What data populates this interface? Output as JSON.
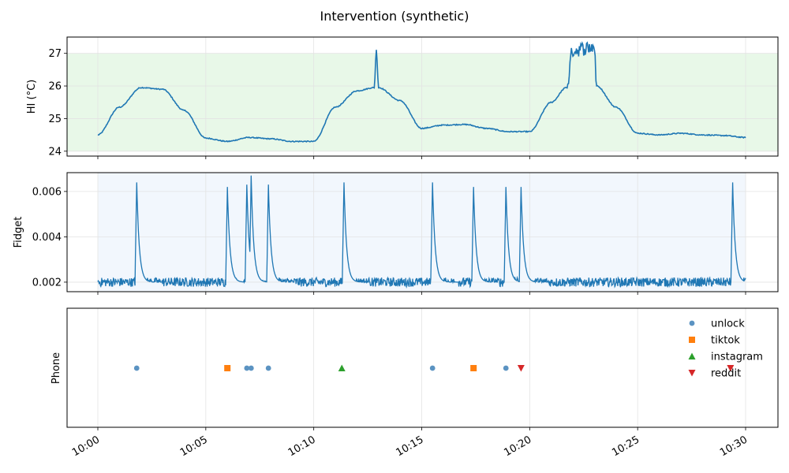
{
  "chart_data": [
    {
      "type": "line",
      "title": "Intervention (synthetic)",
      "ylabel": "HI (°C)",
      "ylim": [
        23.85,
        27.5
      ],
      "yticks": [
        24,
        25,
        26,
        27
      ],
      "comfort_band": [
        24,
        27
      ],
      "band_color": "#e8f8e8",
      "series": [
        {
          "color": "#1f77b4",
          "x": [
            "10:00",
            "10:01",
            "10:02",
            "10:03",
            "10:04",
            "10:05",
            "10:06",
            "10:07",
            "10:08",
            "10:09",
            "10:10",
            "10:11",
            "10:12",
            "10:12.8",
            "10:12.9",
            "10:13",
            "10:14",
            "10:15",
            "10:16",
            "10:17",
            "10:18",
            "10:19",
            "10:20",
            "10:21",
            "10:21.7",
            "10:22",
            "10:23",
            "10:23.1",
            "10:24",
            "10:25",
            "10:26",
            "10:27",
            "10:28",
            "10:29",
            "10:30"
          ],
          "values": [
            24.5,
            25.35,
            25.95,
            25.9,
            25.25,
            24.4,
            24.3,
            24.42,
            24.38,
            24.3,
            24.3,
            25.35,
            25.85,
            25.95,
            27.1,
            25.95,
            25.55,
            24.7,
            24.8,
            24.82,
            24.7,
            24.6,
            24.6,
            25.5,
            25.95,
            27.1,
            27.2,
            26.0,
            25.35,
            24.55,
            24.5,
            24.55,
            24.5,
            24.48,
            24.42
          ]
        }
      ]
    },
    {
      "type": "line",
      "ylabel": "Fidget",
      "ylim": [
        0.00158,
        0.00683
      ],
      "yticks": [
        0.002,
        0.004,
        0.006
      ],
      "ytick_labels": [
        "0.002",
        "0.004",
        "0.006"
      ],
      "band_color": "#f2f7fd",
      "baseline": 0.002,
      "peaks": [
        {
          "x": "10:01.8",
          "value": 0.0064
        },
        {
          "x": "10:06.0",
          "value": 0.0062
        },
        {
          "x": "10:06.9",
          "value": 0.0063
        },
        {
          "x": "10:07.1",
          "value": 0.0067
        },
        {
          "x": "10:07.9",
          "value": 0.0063
        },
        {
          "x": "10:11.4",
          "value": 0.0064
        },
        {
          "x": "10:15.5",
          "value": 0.0064
        },
        {
          "x": "10:17.4",
          "value": 0.0062
        },
        {
          "x": "10:18.9",
          "value": 0.0062
        },
        {
          "x": "10:19.6",
          "value": 0.0062
        },
        {
          "x": "10:29.4",
          "value": 0.0064
        }
      ],
      "color": "#1f77b4"
    },
    {
      "type": "scatter",
      "ylabel": "Phone",
      "xlabel": "",
      "xticks": [
        "10:00",
        "10:05",
        "10:10",
        "10:15",
        "10:20",
        "10:25",
        "10:30"
      ],
      "series": [
        {
          "name": "unlock",
          "marker": "circle",
          "color": "#5b93c2",
          "x": [
            "10:01.8",
            "10:06.9",
            "10:07.1",
            "10:07.9",
            "10:15.5",
            "10:18.9"
          ]
        },
        {
          "name": "tiktok",
          "marker": "square",
          "color": "#ff7f0e",
          "x": [
            "10:06.0",
            "10:17.4"
          ]
        },
        {
          "name": "instagram",
          "marker": "triangle-up",
          "color": "#2ca02c",
          "x": [
            "10:11.3"
          ]
        },
        {
          "name": "reddit",
          "marker": "triangle-down",
          "color": "#d62728",
          "x": [
            "10:19.6",
            "10:29.3"
          ]
        }
      ],
      "legend_position": "top-right"
    }
  ]
}
